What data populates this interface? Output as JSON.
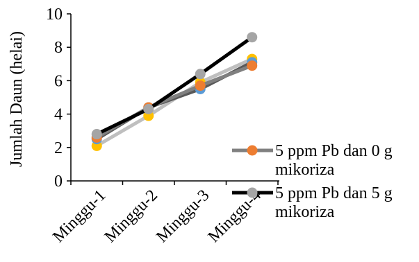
{
  "chart_data": {
    "type": "line",
    "ylabel": "Jumlah Daun (helai)",
    "xlabel": "",
    "categories": [
      "Minggu-1",
      "Minggu-2",
      "Minggu-3",
      "Minggu-4"
    ],
    "ylim": [
      0,
      10
    ],
    "yticks": [
      0,
      2,
      4,
      6,
      8,
      10
    ],
    "grid": false,
    "legend_position": "right",
    "series": [
      {
        "values": [
          2.1,
          3.9,
          5.9,
          7.3
        ],
        "line_color": "#bfbfbf",
        "marker_color": "#ffc000",
        "in_legend": false
      },
      {
        "values": [
          2.5,
          4.4,
          5.5,
          7.1
        ],
        "line_color": "#595959",
        "marker_color": "#5b9bd5",
        "in_legend": false
      },
      {
        "name": "5 ppm Pb dan 0 g mikoriza",
        "legend_lines": [
          "5 ppm Pb dan 0 g",
          "mikoriza"
        ],
        "values": [
          2.6,
          4.4,
          5.7,
          6.9
        ],
        "line_color": "#808080",
        "marker_color": "#ed7d31",
        "in_legend": true
      },
      {
        "name": "5 ppm Pb dan 5 g mikoriza",
        "legend_lines": [
          "5 ppm Pb dan 5 g",
          "mikoriza"
        ],
        "values": [
          2.8,
          4.3,
          6.4,
          8.6
        ],
        "line_color": "#000000",
        "marker_color": "#a5a5a5",
        "in_legend": true
      }
    ]
  }
}
